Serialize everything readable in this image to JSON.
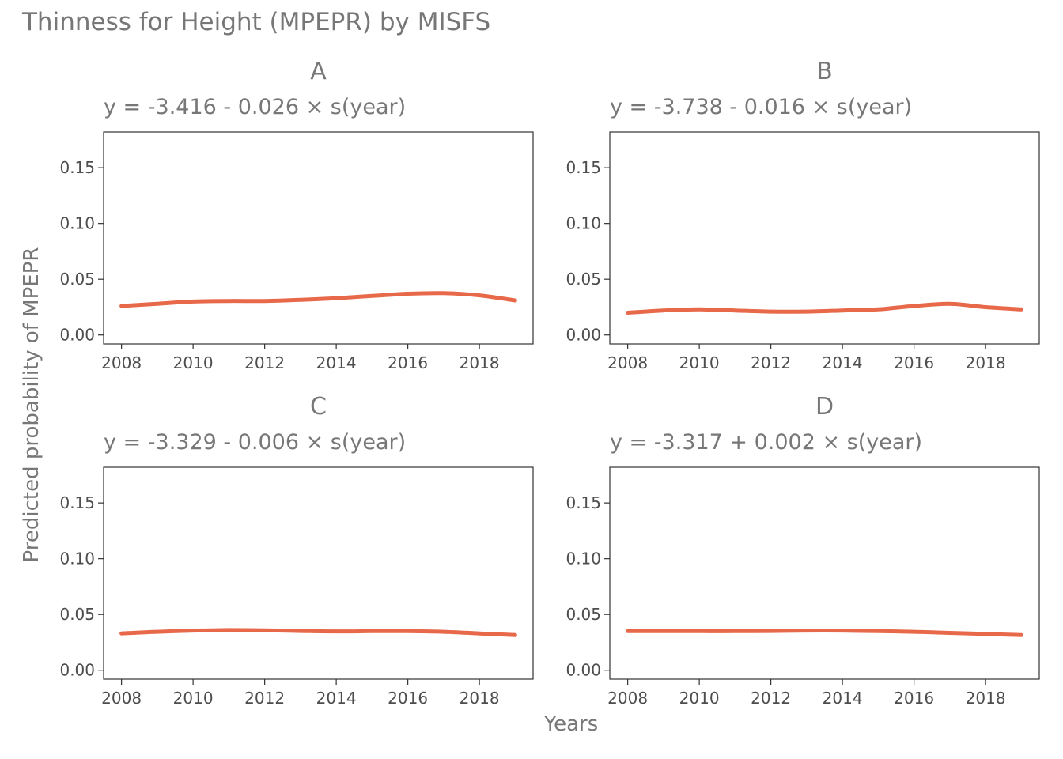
{
  "chart_data": {
    "type": "line",
    "title": "Thinness for Height (MPEPR) by MISFS",
    "xlabel": "Years",
    "ylabel": "Predicted probability of MPEPR",
    "xlim": [
      2007.5,
      2019.5
    ],
    "ylim": [
      -0.008,
      0.182
    ],
    "xticks": [
      2008,
      2010,
      2012,
      2014,
      2016,
      2018
    ],
    "yticks": [
      0.0,
      0.05,
      0.1,
      0.15
    ],
    "ytick_labels": [
      "0.00",
      "0.05",
      "0.10",
      "0.15"
    ],
    "line_color": "#e8694a",
    "grid": false,
    "facets": [
      {
        "strip": "A",
        "subtitle": "y = -3.416 - 0.026 × s(year)",
        "x": [
          2008,
          2009,
          2010,
          2011,
          2012,
          2013,
          2014,
          2015,
          2016,
          2017,
          2018,
          2019
        ],
        "y": [
          0.026,
          0.028,
          0.03,
          0.0305,
          0.0305,
          0.0315,
          0.033,
          0.035,
          0.037,
          0.0375,
          0.0355,
          0.031
        ]
      },
      {
        "strip": "B",
        "subtitle": "y = -3.738 - 0.016 × s(year)",
        "x": [
          2008,
          2009,
          2010,
          2011,
          2012,
          2013,
          2014,
          2015,
          2016,
          2017,
          2018,
          2019
        ],
        "y": [
          0.02,
          0.022,
          0.023,
          0.022,
          0.021,
          0.021,
          0.022,
          0.023,
          0.026,
          0.028,
          0.025,
          0.023
        ]
      },
      {
        "strip": "C",
        "subtitle": "y = -3.329 - 0.006 × s(year)",
        "x": [
          2008,
          2009,
          2010,
          2011,
          2012,
          2013,
          2014,
          2015,
          2016,
          2017,
          2018,
          2019
        ],
        "y": [
          0.033,
          0.0345,
          0.0355,
          0.036,
          0.0358,
          0.0352,
          0.0348,
          0.035,
          0.035,
          0.0345,
          0.033,
          0.0315
        ]
      },
      {
        "strip": "D",
        "subtitle": "y = -3.317 + 0.002 × s(year)",
        "x": [
          2008,
          2009,
          2010,
          2011,
          2012,
          2013,
          2014,
          2015,
          2016,
          2017,
          2018,
          2019
        ],
        "y": [
          0.035,
          0.035,
          0.035,
          0.035,
          0.0352,
          0.0355,
          0.0355,
          0.035,
          0.0345,
          0.0335,
          0.0325,
          0.0315
        ]
      }
    ]
  }
}
